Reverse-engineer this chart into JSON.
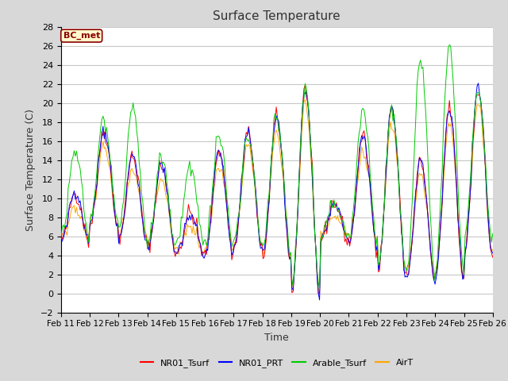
{
  "title": "Surface Temperature",
  "xlabel": "Time",
  "ylabel": "Surface Temperature (C)",
  "ylim": [
    -2,
    28
  ],
  "yticks": [
    -2,
    0,
    2,
    4,
    6,
    8,
    10,
    12,
    14,
    16,
    18,
    20,
    22,
    24,
    26,
    28
  ],
  "xtick_labels": [
    "Feb 11",
    "Feb 12",
    "Feb 13",
    "Feb 14",
    "Feb 15",
    "Feb 16",
    "Feb 17",
    "Feb 18",
    "Feb 19",
    "Feb 20",
    "Feb 21",
    "Feb 22",
    "Feb 23",
    "Feb 24",
    "Feb 25",
    "Feb 26"
  ],
  "annotation_text": "BC_met",
  "annotation_color": "#8B0000",
  "annotation_bg": "#FFFACD",
  "line_colors": {
    "NR01_Tsurf": "#FF0000",
    "NR01_PRT": "#0000FF",
    "Arable_Tsurf": "#00CC00",
    "AirT": "#FFA500"
  },
  "background_color": "#D8D8D8",
  "plot_bg": "#FFFFFF",
  "grid_color": "#C8C8C8",
  "legend_labels": [
    "NR01_Tsurf",
    "NR01_PRT",
    "Arable_Tsurf",
    "AirT"
  ]
}
